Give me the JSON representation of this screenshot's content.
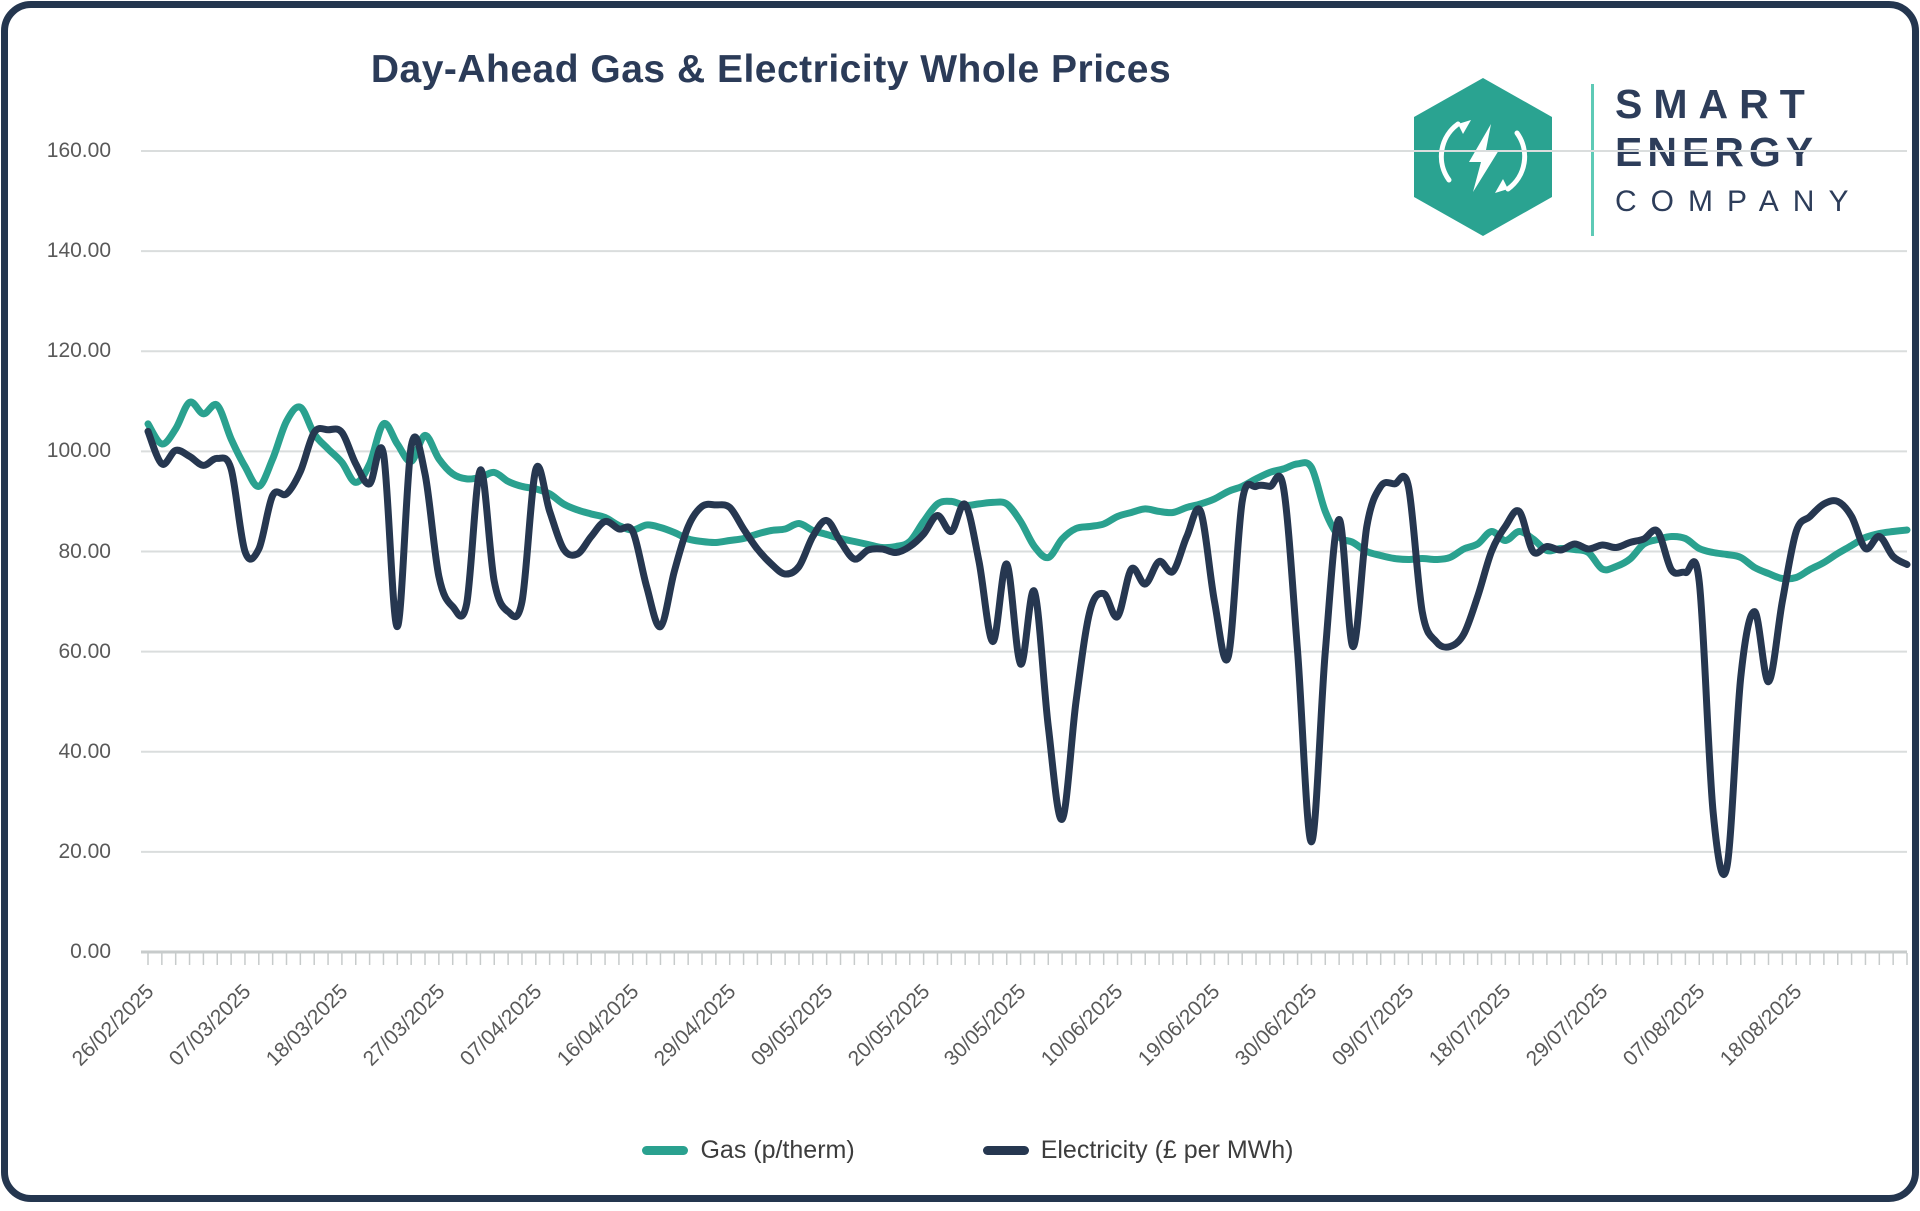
{
  "header": {
    "title": "Day-Ahead Gas & Electricity Whole Prices"
  },
  "logo": {
    "line1": "SMART",
    "line2": "ENERGY",
    "line3": "COMPANY",
    "hex_color": "#2aa391",
    "text_color": "#2d3d5a",
    "icon": "hexagon-recycle-lightning-icon"
  },
  "legend": [
    {
      "label": "Gas (p/therm)",
      "color": "#2aa18f"
    },
    {
      "label": "Electricity (£ per MWh)",
      "color": "#263750"
    }
  ],
  "chart_data": {
    "type": "line",
    "title": "Day-Ahead Gas & Electricity Whole Prices",
    "xlabel": "",
    "ylabel": "",
    "ylim": [
      0,
      160
    ],
    "ytick_step": 20,
    "y_tick_labels": [
      "0.00",
      "20.00",
      "40.00",
      "60.00",
      "80.00",
      "100.00",
      "120.00",
      "140.00",
      "160.00"
    ],
    "grid": "horizontal",
    "legend_position": "bottom",
    "x_tick_labels": [
      "26/02/2025",
      "07/03/2025",
      "18/03/2025",
      "27/03/2025",
      "07/04/2025",
      "16/04/2025",
      "29/04/2025",
      "09/05/2025",
      "20/05/2025",
      "30/05/2025",
      "10/06/2025",
      "19/06/2025",
      "30/06/2025",
      "09/07/2025",
      "18/07/2025",
      "29/07/2025",
      "07/08/2025",
      "18/08/2025"
    ],
    "label_every_n_points": 7,
    "x_note": "business-daily points; minor tick per point",
    "dates": [
      "26/02/2025",
      "27/02/2025",
      "28/02/2025",
      "03/03/2025",
      "04/03/2025",
      "05/03/2025",
      "06/03/2025",
      "07/03/2025",
      "10/03/2025",
      "11/03/2025",
      "12/03/2025",
      "13/03/2025",
      "14/03/2025",
      "17/03/2025",
      "18/03/2025",
      "19/03/2025",
      "20/03/2025",
      "21/03/2025",
      "24/03/2025",
      "25/03/2025",
      "26/03/2025",
      "27/03/2025",
      "28/03/2025",
      "31/03/2025",
      "01/04/2025",
      "02/04/2025",
      "03/04/2025",
      "04/04/2025",
      "07/04/2025",
      "08/04/2025",
      "09/04/2025",
      "10/04/2025",
      "11/04/2025",
      "14/04/2025",
      "15/04/2025",
      "16/04/2025",
      "17/04/2025",
      "22/04/2025",
      "23/04/2025",
      "24/04/2025",
      "25/04/2025",
      "28/04/2025",
      "29/04/2025",
      "30/04/2025",
      "01/05/2025",
      "02/05/2025",
      "06/05/2025",
      "07/05/2025",
      "08/05/2025",
      "09/05/2025",
      "12/05/2025",
      "13/05/2025",
      "14/05/2025",
      "15/05/2025",
      "16/05/2025",
      "19/05/2025",
      "20/05/2025",
      "21/05/2025",
      "22/05/2025",
      "23/05/2025",
      "27/05/2025",
      "28/05/2025",
      "29/05/2025",
      "30/05/2025",
      "02/06/2025",
      "03/06/2025",
      "04/06/2025",
      "05/06/2025",
      "06/06/2025",
      "09/06/2025",
      "10/06/2025",
      "11/06/2025",
      "12/06/2025",
      "13/06/2025",
      "16/06/2025",
      "17/06/2025",
      "18/06/2025",
      "19/06/2025",
      "20/06/2025",
      "23/06/2025",
      "24/06/2025",
      "25/06/2025",
      "26/06/2025",
      "27/06/2025",
      "30/06/2025",
      "01/07/2025",
      "02/07/2025",
      "03/07/2025",
      "04/07/2025",
      "07/07/2025",
      "08/07/2025",
      "09/07/2025",
      "10/07/2025",
      "11/07/2025",
      "14/07/2025",
      "15/07/2025",
      "16/07/2025",
      "17/07/2025",
      "18/07/2025",
      "21/07/2025",
      "22/07/2025",
      "23/07/2025",
      "24/07/2025",
      "25/07/2025",
      "28/07/2025",
      "29/07/2025",
      "30/07/2025",
      "31/07/2025",
      "01/08/2025",
      "04/08/2025",
      "05/08/2025",
      "06/08/2025",
      "07/08/2025",
      "08/08/2025",
      "11/08/2025",
      "12/08/2025",
      "13/08/2025",
      "14/08/2025",
      "15/08/2025",
      "18/08/2025",
      "19/08/2025",
      "20/08/2025",
      "21/08/2025",
      "22/08/2025",
      "26/08/2025",
      "27/08/2025",
      "28/08/2025",
      "29/08/2025"
    ],
    "series": [
      {
        "name": "Gas (p/therm)",
        "color": "#2aa18f",
        "values": [
          105.5,
          101.5,
          104.5,
          109.8,
          107.5,
          109.2,
          102.5,
          97,
          93,
          98.5,
          106,
          108.8,
          103.5,
          100.5,
          97.8,
          93.8,
          97.5,
          105.5,
          101.5,
          98,
          103.2,
          98.5,
          95.5,
          94.5,
          94.8,
          95.8,
          94,
          93,
          92.5,
          91.5,
          89.5,
          88.3,
          87.5,
          86.8,
          85.2,
          84.3,
          85.3,
          84.8,
          83.8,
          82.5,
          82,
          81.8,
          82.2,
          82.6,
          83.5,
          84.2,
          84.5,
          85.6,
          84.2,
          83.4,
          82.6,
          82,
          81.4,
          80.8,
          81,
          82,
          86,
          89.5,
          90,
          89.2,
          89.5,
          89.8,
          89.5,
          86,
          81,
          78.8,
          82.5,
          84.6,
          85,
          85.5,
          87,
          87.8,
          88.5,
          88,
          87.8,
          88.8,
          89.5,
          90.5,
          92,
          93,
          94.5,
          95.8,
          96.5,
          97.5,
          96.8,
          88,
          83,
          81.8,
          80,
          79.2,
          78.6,
          78.4,
          78.6,
          78.4,
          78.8,
          80.5,
          81.5,
          84,
          82.2,
          84,
          82.5,
          80.2,
          80.6,
          80.4,
          79.8,
          76.5,
          77,
          78.5,
          81.5,
          82.4,
          83,
          82.6,
          80.6,
          79.8,
          79.4,
          78.8,
          76.8,
          75.6,
          74.6,
          74.8,
          76.4,
          77.8,
          79.6,
          81.2,
          82.8,
          83.6,
          84,
          84.3
        ]
      },
      {
        "name": "Electricity (£ per MWh)",
        "color": "#263750",
        "values": [
          104,
          97.5,
          100.2,
          99,
          97.2,
          98.6,
          96.5,
          80,
          80.5,
          91.2,
          91.5,
          96,
          103.8,
          104.3,
          103.8,
          97.5,
          93.5,
          99.5,
          65,
          101,
          95.5,
          75,
          69,
          69.5,
          96.3,
          74,
          68,
          70,
          96.4,
          88,
          80.5,
          79.5,
          83,
          86,
          84.5,
          84,
          73,
          65,
          76,
          85,
          89,
          89.3,
          88.8,
          84.5,
          80.5,
          77.5,
          75.5,
          77,
          83,
          86.2,
          82,
          78.5,
          80.3,
          80.5,
          79.8,
          81,
          83.5,
          87.2,
          84,
          89.4,
          78,
          62,
          77.5,
          57.5,
          72,
          45,
          26.5,
          50,
          68,
          71.6,
          67,
          76.5,
          73.5,
          78,
          76,
          83,
          88,
          70,
          59,
          90,
          93,
          93,
          92.5,
          60,
          22,
          60,
          86.4,
          61,
          85,
          93,
          93.5,
          93,
          68,
          62,
          61,
          63.5,
          71,
          80,
          85,
          88,
          80,
          81,
          80.3,
          81.5,
          80.5,
          81.3,
          80.8,
          81.8,
          82.5,
          84,
          76.3,
          75.8,
          74,
          28,
          17,
          55,
          68,
          54,
          70,
          84,
          87,
          89.5,
          90,
          87,
          80.6,
          83,
          79,
          77.4
        ]
      }
    ]
  }
}
